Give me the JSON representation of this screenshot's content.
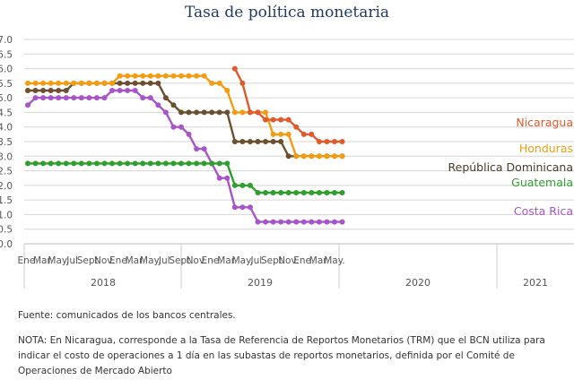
{
  "chart_data": {
    "type": "line",
    "title": "Tasa de política monetaria",
    "ylim": [
      0,
      7
    ],
    "yticks": [
      "0.0",
      "0.5",
      "1.0",
      "1.5",
      "2.0",
      "2.5",
      "3.0",
      "3.5",
      "4.0",
      "4.5",
      "5.0",
      "5.5",
      "6.0",
      "6.5",
      "7.0"
    ],
    "month_tick_labels": [
      "Ene.",
      "Mar.",
      "May.",
      "Jul.",
      "Sept.",
      "Nov.",
      "Ene.",
      "Mar.",
      "May.",
      "Jul.",
      "Sept.",
      "Nov.",
      "Ene.",
      "Mar.",
      "May.",
      "Jul.",
      "Sept.",
      "Nov.",
      "Ene.",
      "Mar.",
      "May."
    ],
    "year_labels": [
      "2018",
      "2019",
      "2020",
      "2021"
    ],
    "grid": true,
    "x_start": "2018-01",
    "x_end": "2021-06",
    "series": [
      {
        "name": "Costa Rica",
        "color": "#a855c8",
        "values": [
          4.75,
          5.0,
          5.0,
          5.0,
          5.0,
          5.0,
          5.0,
          5.0,
          5.0,
          5.0,
          5.0,
          5.25,
          5.25,
          5.25,
          5.25,
          5.0,
          5.0,
          4.75,
          4.5,
          4.0,
          4.0,
          3.75,
          3.25,
          3.25,
          2.75,
          2.25,
          2.25,
          1.25,
          1.25,
          1.25,
          0.75,
          0.75,
          0.75,
          0.75,
          0.75,
          0.75,
          0.75,
          0.75,
          0.75,
          0.75,
          0.75,
          0.75
        ]
      },
      {
        "name": "Guatemala",
        "color": "#2e9e2e",
        "values": [
          2.75,
          2.75,
          2.75,
          2.75,
          2.75,
          2.75,
          2.75,
          2.75,
          2.75,
          2.75,
          2.75,
          2.75,
          2.75,
          2.75,
          2.75,
          2.75,
          2.75,
          2.75,
          2.75,
          2.75,
          2.75,
          2.75,
          2.75,
          2.75,
          2.75,
          2.75,
          2.75,
          2.0,
          2.0,
          2.0,
          1.75,
          1.75,
          1.75,
          1.75,
          1.75,
          1.75,
          1.75,
          1.75,
          1.75,
          1.75,
          1.75,
          1.75
        ]
      },
      {
        "name": "República Dominicana",
        "color": "#6b4f2e",
        "values": [
          5.25,
          5.25,
          5.25,
          5.25,
          5.25,
          5.25,
          5.5,
          5.5,
          5.5,
          5.5,
          5.5,
          5.5,
          5.5,
          5.5,
          5.5,
          5.5,
          5.5,
          5.5,
          5.0,
          4.75,
          4.5,
          4.5,
          4.5,
          4.5,
          4.5,
          4.5,
          4.5,
          3.5,
          3.5,
          3.5,
          3.5,
          3.5,
          3.5,
          3.5,
          3.0,
          3.0,
          3.0,
          3.0,
          3.0,
          3.0,
          3.0,
          3.0
        ]
      },
      {
        "name": "Honduras",
        "color": "#f39c12",
        "values": [
          5.5,
          5.5,
          5.5,
          5.5,
          5.5,
          5.5,
          5.5,
          5.5,
          5.5,
          5.5,
          5.5,
          5.5,
          5.75,
          5.75,
          5.75,
          5.75,
          5.75,
          5.75,
          5.75,
          5.75,
          5.75,
          5.75,
          5.75,
          5.75,
          5.5,
          5.5,
          5.25,
          4.5,
          4.5,
          4.5,
          4.5,
          4.5,
          3.75,
          3.75,
          3.75,
          3.0,
          3.0,
          3.0,
          3.0,
          3.0,
          3.0,
          3.0
        ]
      },
      {
        "name": "Nicaragua",
        "color": "#e05a2a",
        "values": [
          null,
          null,
          null,
          null,
          null,
          null,
          null,
          null,
          null,
          null,
          null,
          null,
          null,
          null,
          null,
          null,
          null,
          null,
          null,
          null,
          null,
          null,
          null,
          null,
          null,
          null,
          null,
          6.0,
          5.5,
          4.5,
          4.5,
          4.25,
          4.25,
          4.25,
          4.25,
          4.0,
          3.75,
          3.75,
          3.5,
          3.5,
          3.5,
          3.5
        ]
      }
    ]
  },
  "notes": {
    "source": "Fuente: comunicados de los bancos centrales.",
    "footnote": "NOTA: En Nicaragua, corresponde a la Tasa de Referencia de Reportos Monetarios (TRM) que el BCN utiliza para indicar el costo de operaciones a 1 día en las subastas de reportos monetarios, definida por el Comité de Operaciones de Mercado Abierto"
  }
}
